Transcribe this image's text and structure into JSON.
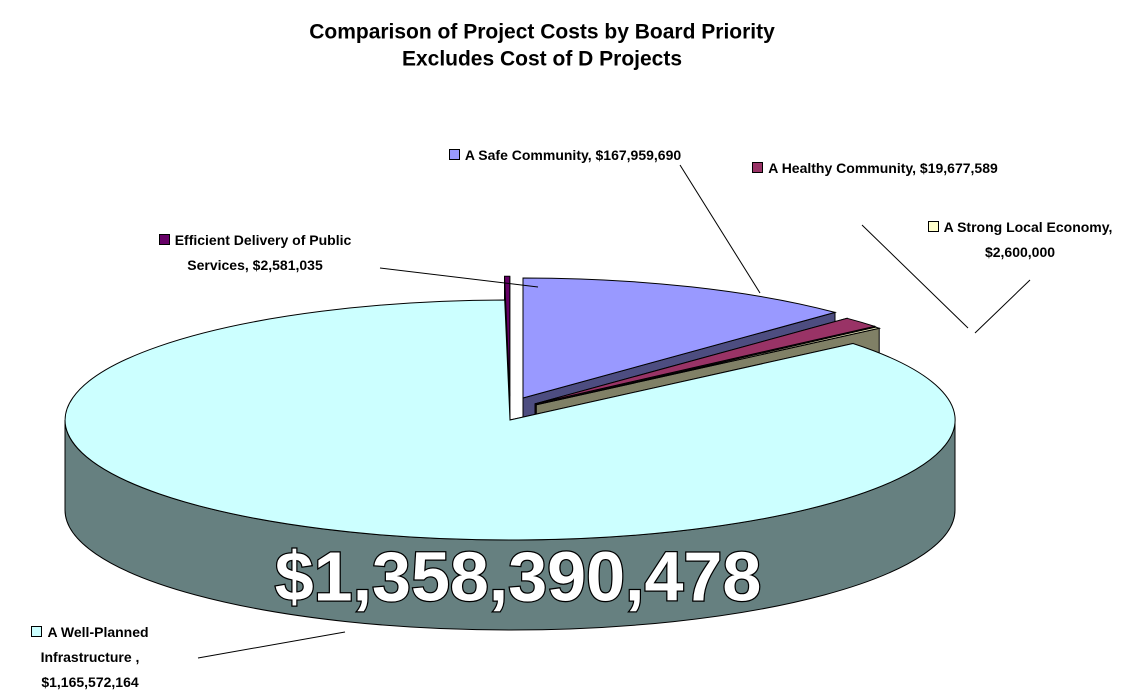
{
  "chart_data": {
    "type": "pie3d",
    "title": "Comparison of Project Costs by Board Priority",
    "subtitle": "Excludes Cost of D Projects",
    "categories": [
      "A Safe Community",
      "A Healthy Community",
      "A Strong Local Economy",
      "A Well-Planned Infrastructure ",
      "Efficient Delivery of Public Services"
    ],
    "values": [
      167959690,
      19677589,
      2600000,
      1165572164,
      2581035
    ],
    "value_labels": [
      "$167,959,690",
      "$19,677,589",
      "$2,600,000",
      "$1,165,572,164",
      "$2,581,035"
    ],
    "separator": ",",
    "colors": [
      "#9999ff",
      "#993366",
      "#ffffcc",
      "#ccffff",
      "#660066"
    ],
    "exploded": [
      true,
      true,
      true,
      false,
      true
    ],
    "annotation": "$1,358,390,478"
  }
}
